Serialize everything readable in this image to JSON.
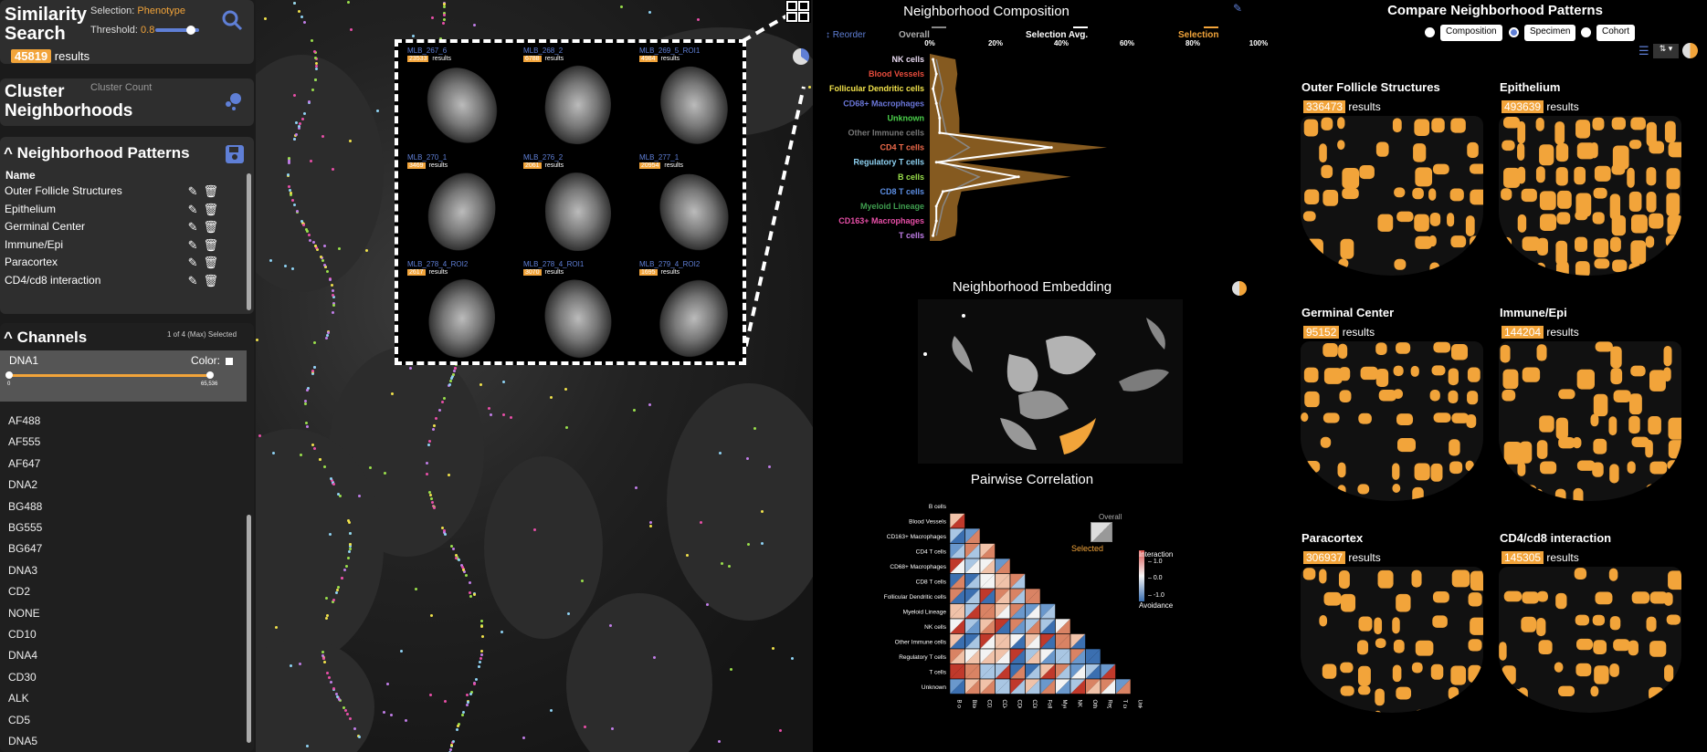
{
  "similarity": {
    "title": "Similarity\nSearch",
    "selection_label": "Selection:",
    "selection_value": "Phenotype",
    "threshold_label": "Threshold:",
    "threshold_value": "0.8",
    "threshold_fraction": 0.8,
    "results_count": "45819",
    "results_label": "results"
  },
  "cluster": {
    "title": "Cluster\nNeighborhoods",
    "count_label": "Cluster Count"
  },
  "patterns": {
    "title": "Neighborhood Patterns",
    "col_header": "Name",
    "items": [
      "Outer Follicle Structures",
      "Epithelium",
      "Germinal Center",
      "Immune/Epi",
      "Paracortex",
      "CD4/cd8 interaction"
    ]
  },
  "channels": {
    "title": "Channels",
    "selected_note": "1 of 4 (Max) Selected",
    "active": {
      "name": "DNA1",
      "color_label": "Color:",
      "min": "0",
      "max": "65,536"
    },
    "list": [
      "AF488",
      "AF555",
      "AF647",
      "DNA2",
      "BG488",
      "BG555",
      "BG647",
      "DNA3",
      "CD2",
      "NONE",
      "CD10",
      "DNA4",
      "CD30",
      "ALK",
      "CD5",
      "DNA5"
    ]
  },
  "grid": {
    "tiles": [
      {
        "name": "MLB_267_6",
        "count": "23533",
        "label": "results"
      },
      {
        "name": "MLB_268_2",
        "count": "6788",
        "label": "results"
      },
      {
        "name": "MLB_269_5_ROI1",
        "count": "4984",
        "label": "results"
      },
      {
        "name": "MLB_270_1",
        "count": "3469",
        "label": "results"
      },
      {
        "name": "MLB_276_2",
        "count": "2061",
        "label": "results"
      },
      {
        "name": "MLB_277_1",
        "count": "20954",
        "label": "results"
      },
      {
        "name": "MLB_278_4_ROI2",
        "count": "2617",
        "label": "results"
      },
      {
        "name": "MLB_278_4_ROI1",
        "count": "3070",
        "label": "results"
      },
      {
        "name": "MLB_279_4_ROI2",
        "count": "1695",
        "label": "results"
      }
    ]
  },
  "composition": {
    "title": "Neighborhood Composition",
    "reorder": "Reorder",
    "legend_overall": "Overall",
    "legend_selection_avg": "Selection Avg.",
    "legend_selection": "Selection",
    "ticks": [
      "0%",
      "20%",
      "40%",
      "60%",
      "80%",
      "100%"
    ],
    "cells": [
      {
        "name": "NK cells",
        "color": "#e8d9f0",
        "overall": 0.02,
        "selection": 0.01
      },
      {
        "name": "Blood Vessels",
        "color": "#e74c3c",
        "overall": 0.03,
        "selection": 0.02
      },
      {
        "name": "Follicular Dendritic cells",
        "color": "#f1e24b",
        "overall": 0.04,
        "selection": 0.01
      },
      {
        "name": "CD68+ Macrophages",
        "color": "#6a76d8",
        "overall": 0.03,
        "selection": 0.02
      },
      {
        "name": "Unknown",
        "color": "#4bd14b",
        "overall": 0.04,
        "selection": 0.03
      },
      {
        "name": "Other Immune cells",
        "color": "#777777",
        "overall": 0.05,
        "selection": 0.03
      },
      {
        "name": "CD4 T cells",
        "color": "#ee6a4a",
        "overall": 0.12,
        "selection": 0.37
      },
      {
        "name": "Regulatory T cells",
        "color": "#8fd3f4",
        "overall": 0.04,
        "selection": 0.02
      },
      {
        "name": "B cells",
        "color": "#9ae04b",
        "overall": 0.15,
        "selection": 0.27
      },
      {
        "name": "CD8 T cells",
        "color": "#5d8fe4",
        "overall": 0.06,
        "selection": 0.04
      },
      {
        "name": "Myeloid Lineage",
        "color": "#3f9e4f",
        "overall": 0.04,
        "selection": 0.02
      },
      {
        "name": "CD163+ Macrophages",
        "color": "#e84fa8",
        "overall": 0.03,
        "selection": 0.02
      },
      {
        "name": "T cells",
        "color": "#c17ee8",
        "overall": 0.02,
        "selection": 0.01
      }
    ]
  },
  "embedding": {
    "title": "Neighborhood Embedding"
  },
  "correlation": {
    "title": "Pairwise Correlation",
    "legend_overall": "Overall",
    "legend_selected": "Selected",
    "scale_title": "Interaction",
    "scale_top": "1.0",
    "scale_mid": "0.0",
    "scale_bottom": "-1.0",
    "scale_foot": "Avoidance",
    "labels": [
      "B cells",
      "Blood Vessels",
      "CD163+ Macrophages",
      "CD4 T cells",
      "CD68+ Macrophages",
      "CD8 T cells",
      "Follicular Dendritic cells",
      "Myeloid Lineage",
      "NK cells",
      "Other Immune cells",
      "Regulatory T cells",
      "T cells",
      "Unknown"
    ]
  },
  "compare": {
    "title": "Compare Neighborhood Patterns",
    "options": [
      "Composition",
      "Specimen",
      "Cohort"
    ],
    "panels": [
      {
        "title": "Outer Follicle Structures",
        "count": "336473",
        "label": "results"
      },
      {
        "title": "Epithelium",
        "count": "493639",
        "label": "results"
      },
      {
        "title": "Germinal Center",
        "count": "95152",
        "label": "results"
      },
      {
        "title": "Immune/Epi",
        "count": "144204",
        "label": "results"
      },
      {
        "title": "Paracortex",
        "count": "306937",
        "label": "results"
      },
      {
        "title": "CD4/cd8 interaction",
        "count": "145305",
        "label": "results"
      }
    ]
  },
  "colors": {
    "accent": "#f2a43a",
    "blue": "#5f7fd6",
    "panel": "#2e2e2e"
  }
}
